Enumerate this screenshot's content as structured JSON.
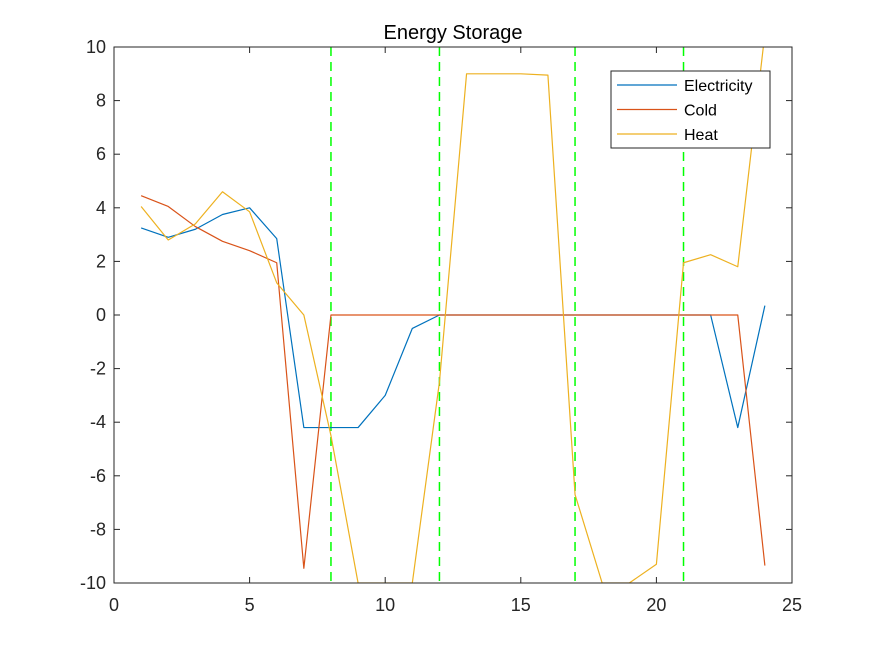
{
  "chart_data": {
    "type": "line",
    "title": "Energy Storage",
    "xlabel": "",
    "ylabel": "",
    "xlim": [
      0,
      25
    ],
    "ylim": [
      -10,
      10
    ],
    "xticks": [
      0,
      5,
      10,
      15,
      20,
      25
    ],
    "yticks": [
      -10,
      -8,
      -6,
      -4,
      -2,
      0,
      2,
      4,
      6,
      8,
      10
    ],
    "grid": false,
    "legend_position": "top-right",
    "x": [
      1,
      2,
      3,
      4,
      5,
      6,
      7,
      8,
      9,
      10,
      11,
      12,
      13,
      14,
      15,
      16,
      17,
      18,
      19,
      20,
      21,
      22,
      23,
      24
    ],
    "series": [
      {
        "name": "Electricity",
        "color": "#0072BD",
        "values": [
          3.25,
          2.9,
          3.2,
          3.75,
          4.0,
          2.85,
          -4.2,
          -4.2,
          -4.2,
          -3.0,
          -0.5,
          0,
          0,
          0,
          0,
          0,
          0,
          0,
          0,
          0,
          0,
          0,
          -4.2,
          0.35
        ]
      },
      {
        "name": "Cold",
        "color": "#D95319",
        "values": [
          4.45,
          4.05,
          3.3,
          2.75,
          2.4,
          1.95,
          -9.45,
          0,
          0,
          0,
          0,
          0,
          0,
          0,
          0,
          0,
          0,
          0,
          0,
          0,
          0,
          0,
          0,
          -9.35
        ]
      },
      {
        "name": "Heat",
        "color": "#EDB120",
        "values": [
          4.05,
          2.8,
          3.4,
          4.6,
          3.85,
          1.2,
          0,
          -4.5,
          -10,
          -10,
          -10,
          -2.5,
          9.0,
          9.0,
          9.0,
          8.95,
          -6.7,
          -10,
          -10,
          -9.3,
          1.95,
          2.25,
          1.8,
          10.5
        ]
      }
    ],
    "vlines": {
      "x": [
        8,
        12,
        17,
        21
      ],
      "color": "#00FF00",
      "style": "dashed"
    }
  }
}
